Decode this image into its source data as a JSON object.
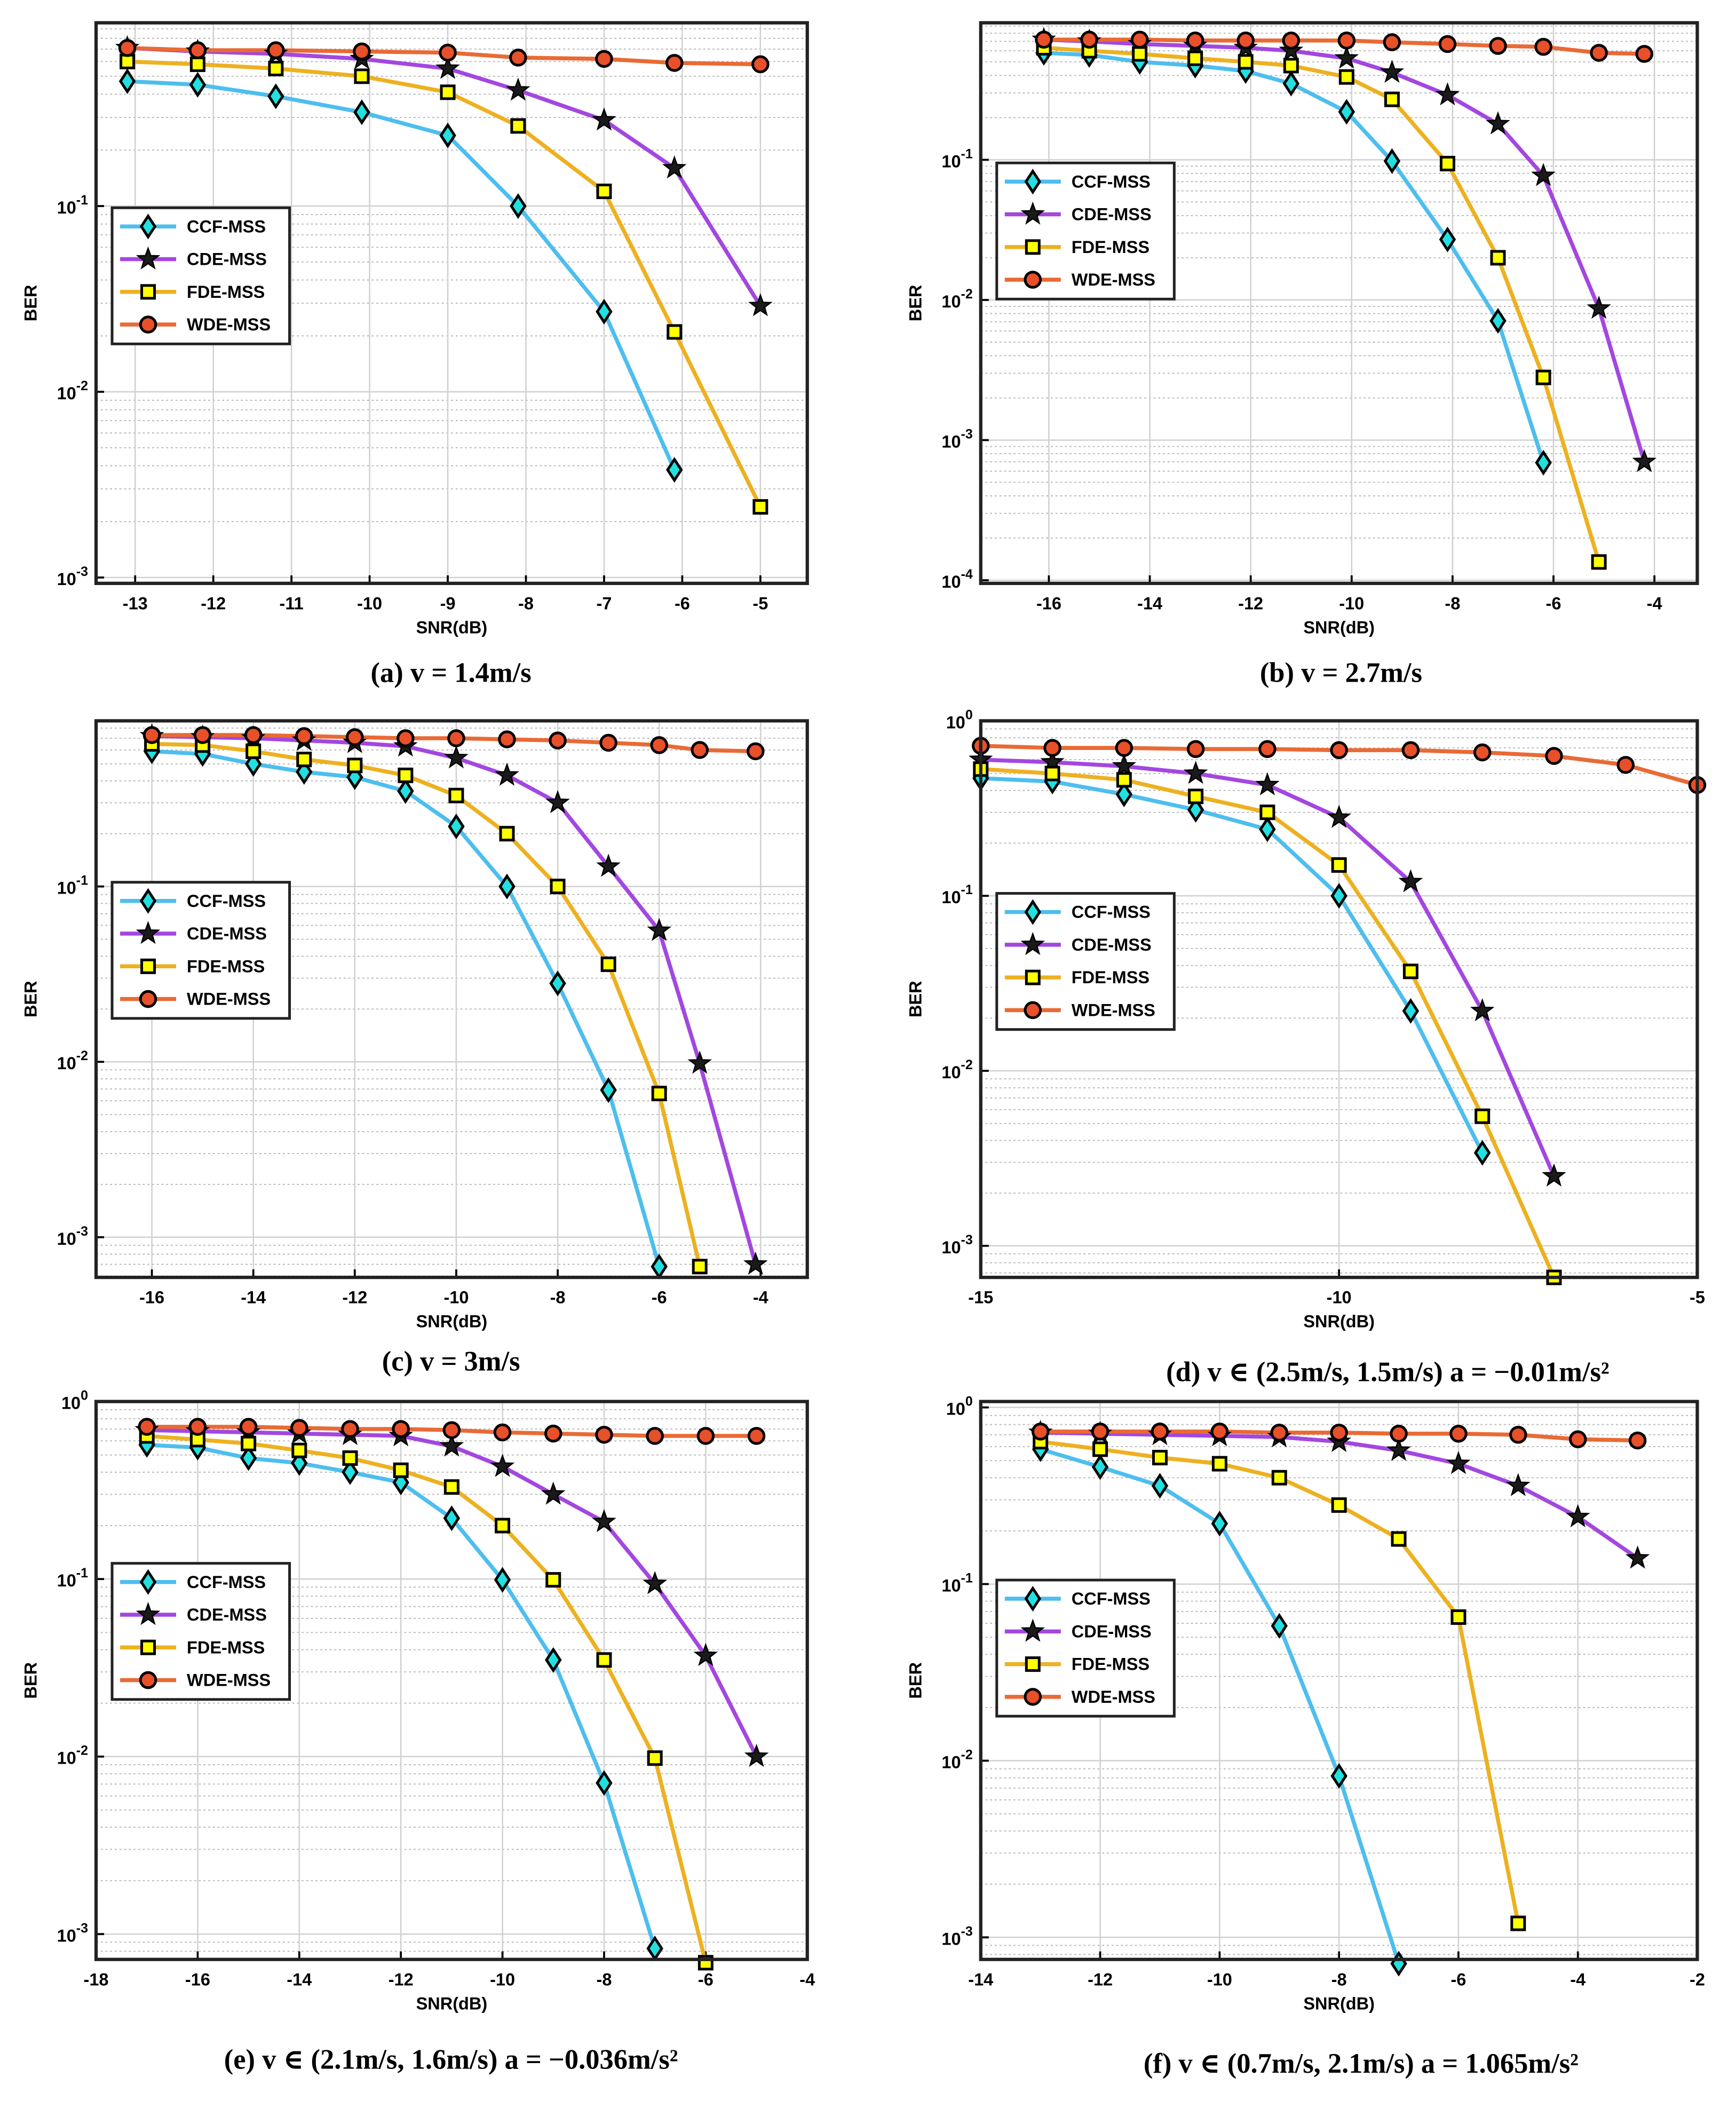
{
  "chart_data": [
    {
      "type": "line",
      "caption": "(a) v = 1.4m/s",
      "xlabel": "SNR(dB)",
      "ylabel": "BER",
      "log_y": true,
      "grid": true,
      "minor_grid": true,
      "legend": "center left",
      "x": [
        -13.1,
        -12.2,
        -11.2,
        -10.1,
        -9,
        -8.1,
        -7,
        -6.1,
        -5
      ],
      "xlim": [
        -13.5,
        -4.4
      ],
      "xticks": [
        -13,
        -12,
        -11,
        -10,
        -9,
        -8,
        -7,
        -6,
        -5
      ],
      "ylim": [
        0.00093,
        0.97
      ],
      "yticks": [
        {
          "value": 0.001,
          "label": "10^-3"
        },
        {
          "value": 0.01,
          "label": "10^-2"
        },
        {
          "value": 0.1,
          "label": "10^-1"
        }
      ],
      "series": [
        {
          "name": "CCF-MSS",
          "color": "#4dbeee",
          "marker": "diamond",
          "marker_fill": "#22e0e0",
          "values": [
            0.47,
            0.45,
            0.39,
            0.32,
            0.24,
            0.1,
            0.027,
            0.0038,
            null
          ]
        },
        {
          "name": "CDE-MSS",
          "color": "#a347e0",
          "marker": "star",
          "marker_fill": "#1a1a1a",
          "values": [
            0.71,
            0.68,
            0.66,
            0.62,
            0.55,
            0.42,
            0.29,
            0.16,
            0.029
          ]
        },
        {
          "name": "FDE-MSS",
          "color": "#edb120",
          "marker": "square",
          "marker_fill": "#ffff00",
          "values": [
            0.6,
            0.58,
            0.55,
            0.5,
            0.41,
            0.27,
            0.12,
            0.021,
            0.0024
          ]
        },
        {
          "name": "WDE-MSS",
          "color": "#e96a35",
          "marker": "circle",
          "marker_fill": "#e8502a",
          "values": [
            0.71,
            0.69,
            0.69,
            0.68,
            0.67,
            0.63,
            0.62,
            0.59,
            0.58
          ]
        }
      ]
    },
    {
      "type": "line",
      "caption": "(b) v = 2.7m/s",
      "xlabel": "SNR(dB)",
      "ylabel": "BER",
      "log_y": true,
      "grid": true,
      "minor_grid": true,
      "legend": "center left",
      "x": [
        -16.1,
        -15.2,
        -14.2,
        -13.1,
        -12.1,
        -11.2,
        -10.1,
        -9.2,
        -8.1,
        -7.1,
        -6.2,
        -5.1,
        -4.2
      ],
      "xlim": [
        -17.35,
        -3.15
      ],
      "xticks": [
        -16,
        -14,
        -12,
        -10,
        -8,
        -6,
        -4
      ],
      "ylim": [
        9.5e-05,
        0.95
      ],
      "yticks": [
        {
          "value": 0.0001,
          "label": "10^-4"
        },
        {
          "value": 0.001,
          "label": "10^-3"
        },
        {
          "value": 0.01,
          "label": "10^-2"
        },
        {
          "value": 0.1,
          "label": "10^-1"
        }
      ],
      "series": [
        {
          "name": "CCF-MSS",
          "color": "#4dbeee",
          "marker": "diamond",
          "marker_fill": "#22e0e0",
          "values": [
            0.58,
            0.56,
            0.5,
            0.47,
            0.43,
            0.35,
            0.22,
            0.098,
            0.027,
            0.0071,
            0.00069,
            null,
            null
          ]
        },
        {
          "name": "CDE-MSS",
          "color": "#a347e0",
          "marker": "star",
          "marker_fill": "#1a1a1a",
          "values": [
            0.72,
            0.7,
            0.67,
            0.65,
            0.63,
            0.6,
            0.53,
            0.42,
            0.29,
            0.18,
            0.077,
            0.0087,
            0.0007
          ]
        },
        {
          "name": "FDE-MSS",
          "color": "#edb120",
          "marker": "square",
          "marker_fill": "#ffff00",
          "values": [
            0.63,
            0.6,
            0.57,
            0.53,
            0.5,
            0.47,
            0.39,
            0.27,
            0.094,
            0.02,
            0.0028,
            0.000135,
            null
          ]
        },
        {
          "name": "WDE-MSS",
          "color": "#e96a35",
          "marker": "circle",
          "marker_fill": "#e8502a",
          "values": [
            0.72,
            0.72,
            0.72,
            0.71,
            0.71,
            0.71,
            0.71,
            0.69,
            0.67,
            0.65,
            0.64,
            0.58,
            0.57
          ]
        }
      ]
    },
    {
      "type": "line",
      "caption": "(c) v = 3m/s",
      "xlabel": "SNR(dB)",
      "ylabel": "BER",
      "log_y": true,
      "grid": true,
      "minor_grid": true,
      "legend": "center left",
      "x": [
        -16,
        -15,
        -14,
        -13,
        -12,
        -11,
        -10,
        -9,
        -8,
        -7,
        -6,
        -5.2,
        -4.1
      ],
      "xlim": [
        -17.1,
        -3.08
      ],
      "xticks": [
        -16,
        -14,
        -12,
        -10,
        -8,
        -6,
        -4
      ],
      "ylim": [
        0.00059,
        0.88
      ],
      "yticks": [
        {
          "value": 0.001,
          "label": "10^-3"
        },
        {
          "value": 0.01,
          "label": "10^-2"
        },
        {
          "value": 0.1,
          "label": "10^-1"
        }
      ],
      "series": [
        {
          "name": "CCF-MSS",
          "color": "#4dbeee",
          "marker": "diamond",
          "marker_fill": "#22e0e0",
          "values": [
            0.59,
            0.57,
            0.5,
            0.45,
            0.42,
            0.35,
            0.22,
            0.1,
            0.028,
            0.0069,
            0.00068,
            null,
            null
          ]
        },
        {
          "name": "CDE-MSS",
          "color": "#a347e0",
          "marker": "star",
          "marker_fill": "#1a1a1a",
          "values": [
            0.72,
            0.71,
            0.7,
            0.68,
            0.66,
            0.63,
            0.54,
            0.43,
            0.3,
            0.13,
            0.056,
            0.0098,
            0.0007
          ]
        },
        {
          "name": "FDE-MSS",
          "color": "#edb120",
          "marker": "square",
          "marker_fill": "#ffff00",
          "values": [
            0.65,
            0.64,
            0.59,
            0.53,
            0.49,
            0.43,
            0.33,
            0.2,
            0.1,
            0.036,
            0.0066,
            0.00068,
            null
          ]
        },
        {
          "name": "WDE-MSS",
          "color": "#e96a35",
          "marker": "circle",
          "marker_fill": "#e8502a",
          "values": [
            0.73,
            0.73,
            0.73,
            0.72,
            0.71,
            0.7,
            0.7,
            0.69,
            0.68,
            0.66,
            0.64,
            0.6,
            0.59
          ]
        }
      ]
    },
    {
      "type": "line",
      "caption": "(d) v ∈ (2.5m/s, 1.5m/s) a = −0.01m/s²",
      "xlabel": "SNR(dB)",
      "ylabel": "BER",
      "log_y": true,
      "grid": true,
      "minor_grid": true,
      "legend": "center left",
      "x": [
        -15,
        -14,
        -13,
        -12,
        -11,
        -10,
        -9,
        -8,
        -7,
        -6,
        -5
      ],
      "xlim": [
        -15,
        -5
      ],
      "xticks": [
        -15,
        -10,
        -5
      ],
      "ylim": [
        0.00066,
        1
      ],
      "yticks": [
        {
          "value": 0.001,
          "label": "10^-3"
        },
        {
          "value": 0.01,
          "label": "10^-2"
        },
        {
          "value": 0.1,
          "label": "10^-1"
        },
        {
          "value": 1,
          "label": "10^0"
        }
      ],
      "series": [
        {
          "name": "CCF-MSS",
          "color": "#4dbeee",
          "marker": "diamond",
          "marker_fill": "#22e0e0",
          "values": [
            0.47,
            0.45,
            0.38,
            0.31,
            0.24,
            0.1,
            0.022,
            0.0034,
            null,
            null,
            null
          ]
        },
        {
          "name": "CDE-MSS",
          "color": "#a347e0",
          "marker": "star",
          "marker_fill": "#1a1a1a",
          "values": [
            0.6,
            0.58,
            0.55,
            0.5,
            0.43,
            0.28,
            0.12,
            0.022,
            0.0025,
            null,
            null
          ]
        },
        {
          "name": "FDE-MSS",
          "color": "#edb120",
          "marker": "square",
          "marker_fill": "#ffff00",
          "values": [
            0.53,
            0.5,
            0.46,
            0.37,
            0.3,
            0.15,
            0.037,
            0.0055,
            0.00066,
            null,
            null
          ]
        },
        {
          "name": "WDE-MSS",
          "color": "#e96a35",
          "marker": "circle",
          "marker_fill": "#e8502a",
          "values": [
            0.72,
            0.7,
            0.7,
            0.69,
            0.69,
            0.68,
            0.68,
            0.66,
            0.63,
            0.56,
            0.43
          ]
        }
      ]
    },
    {
      "type": "line",
      "caption": "(e) v ∈ (2.1m/s, 1.6m/s) a = −0.036m/s²",
      "xlabel": "SNR(dB)",
      "ylabel": "BER",
      "log_y": true,
      "grid": true,
      "minor_grid": true,
      "legend": "center left",
      "x": [
        -17,
        -16,
        -15,
        -14,
        -13,
        -12,
        -11,
        -10,
        -9,
        -8,
        -7,
        -6,
        -5
      ],
      "xlim": [
        -18,
        -4
      ],
      "xticks": [
        -18,
        -16,
        -14,
        -12,
        -10,
        -8,
        -6,
        -4
      ],
      "ylim": [
        0.00072,
        1
      ],
      "yticks": [
        {
          "value": 0.001,
          "label": "10^-3"
        },
        {
          "value": 0.01,
          "label": "10^-2"
        },
        {
          "value": 0.1,
          "label": "10^-1"
        },
        {
          "value": 1,
          "label": "10^0"
        }
      ],
      "series": [
        {
          "name": "CCF-MSS",
          "color": "#4dbeee",
          "marker": "diamond",
          "marker_fill": "#22e0e0",
          "values": [
            0.57,
            0.55,
            0.48,
            0.45,
            0.4,
            0.35,
            0.22,
            0.099,
            0.035,
            0.0071,
            0.00083,
            null,
            null
          ]
        },
        {
          "name": "CDE-MSS",
          "color": "#a347e0",
          "marker": "star",
          "marker_fill": "#1a1a1a",
          "values": [
            0.69,
            0.68,
            0.67,
            0.66,
            0.65,
            0.64,
            0.56,
            0.43,
            0.3,
            0.21,
            0.094,
            0.037,
            0.01
          ]
        },
        {
          "name": "FDE-MSS",
          "color": "#edb120",
          "marker": "square",
          "marker_fill": "#ffff00",
          "values": [
            0.64,
            0.61,
            0.58,
            0.53,
            0.48,
            0.41,
            0.33,
            0.2,
            0.099,
            0.035,
            0.0098,
            0.00069,
            null
          ]
        },
        {
          "name": "WDE-MSS",
          "color": "#e96a35",
          "marker": "circle",
          "marker_fill": "#e8502a",
          "values": [
            0.72,
            0.72,
            0.72,
            0.71,
            0.7,
            0.7,
            0.69,
            0.67,
            0.66,
            0.65,
            0.64,
            0.64,
            0.64
          ]
        }
      ]
    },
    {
      "type": "line",
      "caption": "(f) v ∈ (0.7m/s, 2.1m/s)  a = 1.065m/s²",
      "xlabel": "SNR(dB)",
      "ylabel": "BER",
      "log_y": true,
      "grid": true,
      "minor_grid": true,
      "legend": "center left",
      "x": [
        -13,
        -12,
        -11,
        -10,
        -9,
        -8,
        -7,
        -6,
        -5,
        -4,
        -3
      ],
      "xlim": [
        -14,
        -2
      ],
      "xticks": [
        -14,
        -12,
        -10,
        -8,
        -6,
        -4,
        -2
      ],
      "ylim": [
        0.00075,
        1.08
      ],
      "yticks": [
        {
          "value": 0.001,
          "label": "10^-3"
        },
        {
          "value": 0.01,
          "label": "10^-2"
        },
        {
          "value": 0.1,
          "label": "10^-1"
        },
        {
          "value": 1,
          "label": "10^0"
        }
      ],
      "series": [
        {
          "name": "CCF-MSS",
          "color": "#4dbeee",
          "marker": "diamond",
          "marker_fill": "#22e0e0",
          "values": [
            0.58,
            0.46,
            0.36,
            0.22,
            0.058,
            0.0082,
            0.00071,
            null,
            null,
            null,
            null
          ]
        },
        {
          "name": "CDE-MSS",
          "color": "#a347e0",
          "marker": "star",
          "marker_fill": "#1a1a1a",
          "values": [
            0.72,
            0.71,
            0.7,
            0.69,
            0.68,
            0.64,
            0.57,
            0.48,
            0.36,
            0.24,
            0.14
          ]
        },
        {
          "name": "FDE-MSS",
          "color": "#edb120",
          "marker": "square",
          "marker_fill": "#ffff00",
          "values": [
            0.64,
            0.58,
            0.52,
            0.48,
            0.4,
            0.28,
            0.18,
            0.065,
            0.0012,
            null,
            null
          ]
        },
        {
          "name": "WDE-MSS",
          "color": "#e96a35",
          "marker": "circle",
          "marker_fill": "#e8502a",
          "values": [
            0.73,
            0.73,
            0.73,
            0.73,
            0.72,
            0.72,
            0.71,
            0.71,
            0.7,
            0.66,
            0.65
          ]
        }
      ]
    }
  ]
}
